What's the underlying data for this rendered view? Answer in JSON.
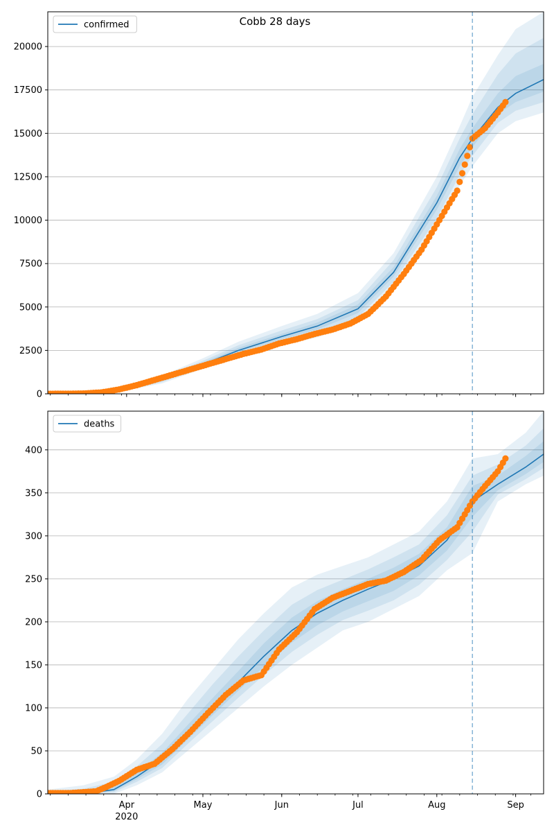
{
  "figure": {
    "title": "Cobb 28 days",
    "x_tick_labels": [
      "Apr",
      "May",
      "Jun",
      "Jul",
      "Aug",
      "Sep"
    ],
    "x_year_label": "2020",
    "colors": {
      "model_line": "#1f77b4",
      "observed_points": "#ff7f0e",
      "band": "#1f77b4",
      "forecast_line": "#1f77b4",
      "grid": "#b0b0b0"
    }
  },
  "chart_data": [
    {
      "type": "line",
      "title": "Cobb 28 days",
      "legend": [
        "confirmed"
      ],
      "legend_position": "upper-left",
      "grid": "y",
      "xlim": [
        "2020-03-01",
        "2020-09-12"
      ],
      "ylim": [
        0,
        22000
      ],
      "yticks": [
        0,
        2500,
        5000,
        7500,
        10000,
        12500,
        15000,
        17500,
        20000
      ],
      "forecast_start": "2020-08-15",
      "model": {
        "name": "confirmed",
        "x": [
          "2020-03-01",
          "2020-03-10",
          "2020-03-20",
          "2020-04-01",
          "2020-04-15",
          "2020-05-01",
          "2020-05-15",
          "2020-06-01",
          "2020-06-15",
          "2020-07-01",
          "2020-07-15",
          "2020-08-01",
          "2020-08-10",
          "2020-08-15",
          "2020-08-25",
          "2020-09-01",
          "2020-09-12"
        ],
        "y": [
          0,
          10,
          60,
          300,
          800,
          1700,
          2500,
          3300,
          3900,
          4900,
          7000,
          11000,
          13600,
          14700,
          16500,
          17300,
          18100
        ],
        "bands": [
          {
            "lower": [
              0,
              0,
              20,
              200,
              600,
              1450,
              2150,
              2800,
              3250,
              4100,
              6100,
              9600,
              12000,
              13100,
              15000,
              15700,
              16200
            ],
            "upper": [
              0,
              30,
              120,
              420,
              1050,
              2050,
              3000,
              3900,
              4600,
              5800,
              8100,
              12500,
              15400,
              17100,
              19500,
              21000,
              22000
            ]
          },
          {
            "lower": [
              0,
              2,
              35,
              240,
              680,
              1550,
              2300,
              3000,
              3500,
              4400,
              6450,
              10100,
              12600,
              13700,
              15600,
              16300,
              16800
            ],
            "upper": [
              0,
              20,
              95,
              370,
              950,
              1900,
              2800,
              3650,
              4300,
              5400,
              7700,
              11900,
              14700,
              16100,
              18400,
              19600,
              20500
            ]
          },
          {
            "lower": [
              0,
              5,
              45,
              270,
              740,
              1620,
              2400,
              3150,
              3700,
              4650,
              6750,
              10600,
              13100,
              14200,
              16100,
              16800,
              17400
            ],
            "upper": [
              0,
              15,
              80,
              330,
              870,
              1800,
              2650,
              3450,
              4100,
              5150,
              7300,
              11400,
              14100,
              15300,
              17300,
              18300,
              19000
            ]
          }
        ]
      },
      "observed": {
        "x": [
          "2020-03-01",
          "2020-03-08",
          "2020-03-15",
          "2020-03-22",
          "2020-03-29",
          "2020-04-05",
          "2020-04-12",
          "2020-04-19",
          "2020-04-26",
          "2020-05-03",
          "2020-05-10",
          "2020-05-17",
          "2020-05-24",
          "2020-05-31",
          "2020-06-07",
          "2020-06-14",
          "2020-06-21",
          "2020-06-28",
          "2020-07-05",
          "2020-07-12",
          "2020-07-19",
          "2020-07-26",
          "2020-08-02",
          "2020-08-09",
          "2020-08-15",
          "2020-08-20",
          "2020-08-25",
          "2020-08-28"
        ],
        "y": [
          0,
          5,
          20,
          80,
          250,
          500,
          800,
          1100,
          1400,
          1700,
          2000,
          2300,
          2550,
          2900,
          3150,
          3450,
          3700,
          4050,
          4600,
          5600,
          6900,
          8300,
          10000,
          11700,
          14700,
          15300,
          16200,
          16800
        ]
      }
    },
    {
      "type": "line",
      "title": "",
      "legend": [
        "deaths"
      ],
      "legend_position": "upper-left",
      "grid": "y",
      "xlim": [
        "2020-03-01",
        "2020-09-12"
      ],
      "ylim": [
        0,
        445
      ],
      "yticks": [
        0,
        50,
        100,
        150,
        200,
        250,
        300,
        350,
        400
      ],
      "forecast_start": "2020-08-15",
      "model": {
        "name": "deaths",
        "x": [
          "2020-03-01",
          "2020-03-15",
          "2020-03-27",
          "2020-04-05",
          "2020-04-15",
          "2020-04-25",
          "2020-05-05",
          "2020-05-15",
          "2020-05-25",
          "2020-06-05",
          "2020-06-15",
          "2020-06-25",
          "2020-07-05",
          "2020-07-15",
          "2020-07-25",
          "2020-08-05",
          "2020-08-15",
          "2020-08-25",
          "2020-09-05",
          "2020-09-12"
        ],
        "y": [
          0,
          0,
          5,
          20,
          40,
          70,
          100,
          130,
          160,
          190,
          210,
          225,
          238,
          250,
          265,
          295,
          340,
          360,
          380,
          395
        ],
        "bands": [
          {
            "lower": [
              0,
              0,
              0,
              10,
              25,
              50,
              75,
              100,
              125,
              150,
              170,
              190,
              200,
              215,
              230,
              260,
              280,
              340,
              360,
              370
            ],
            "upper": [
              5,
              10,
              20,
              40,
              70,
              110,
              145,
              180,
              210,
              240,
              255,
              265,
              275,
              290,
              305,
              340,
              390,
              395,
              420,
              445
            ]
          },
          {
            "lower": [
              0,
              0,
              2,
              14,
              30,
              58,
              85,
              112,
              138,
              165,
              185,
              202,
              213,
              225,
              243,
              272,
              305,
              348,
              366,
              379
            ],
            "upper": [
              3,
              6,
              14,
              32,
              58,
              93,
              128,
              160,
              190,
              220,
              237,
              249,
              261,
              275,
              290,
              324,
              370,
              383,
              405,
              425
            ]
          },
          {
            "lower": [
              0,
              0,
              3,
              17,
              34,
              63,
              92,
              120,
              148,
              176,
              196,
              212,
              224,
              236,
              254,
              283,
              322,
              353,
              372,
              386
            ],
            "upper": [
              1,
              3,
              9,
              25,
              48,
              80,
              112,
              143,
              175,
              205,
              224,
              238,
              250,
              263,
              279,
              310,
              358,
              370,
              393,
              410
            ]
          }
        ]
      },
      "observed": {
        "x": [
          "2020-03-01",
          "2020-03-10",
          "2020-03-20",
          "2020-03-24",
          "2020-03-29",
          "2020-04-05",
          "2020-04-12",
          "2020-04-19",
          "2020-04-26",
          "2020-05-03",
          "2020-05-10",
          "2020-05-17",
          "2020-05-24",
          "2020-05-31",
          "2020-06-07",
          "2020-06-14",
          "2020-06-21",
          "2020-06-28",
          "2020-07-05",
          "2020-07-12",
          "2020-07-19",
          "2020-07-26",
          "2020-08-02",
          "2020-08-09",
          "2020-08-15",
          "2020-08-20",
          "2020-08-25",
          "2020-08-28"
        ],
        "y": [
          1,
          1,
          3,
          8,
          15,
          28,
          35,
          52,
          72,
          94,
          115,
          132,
          138,
          168,
          188,
          215,
          228,
          236,
          244,
          248,
          258,
          272,
          295,
          310,
          340,
          358,
          375,
          390
        ]
      }
    }
  ]
}
